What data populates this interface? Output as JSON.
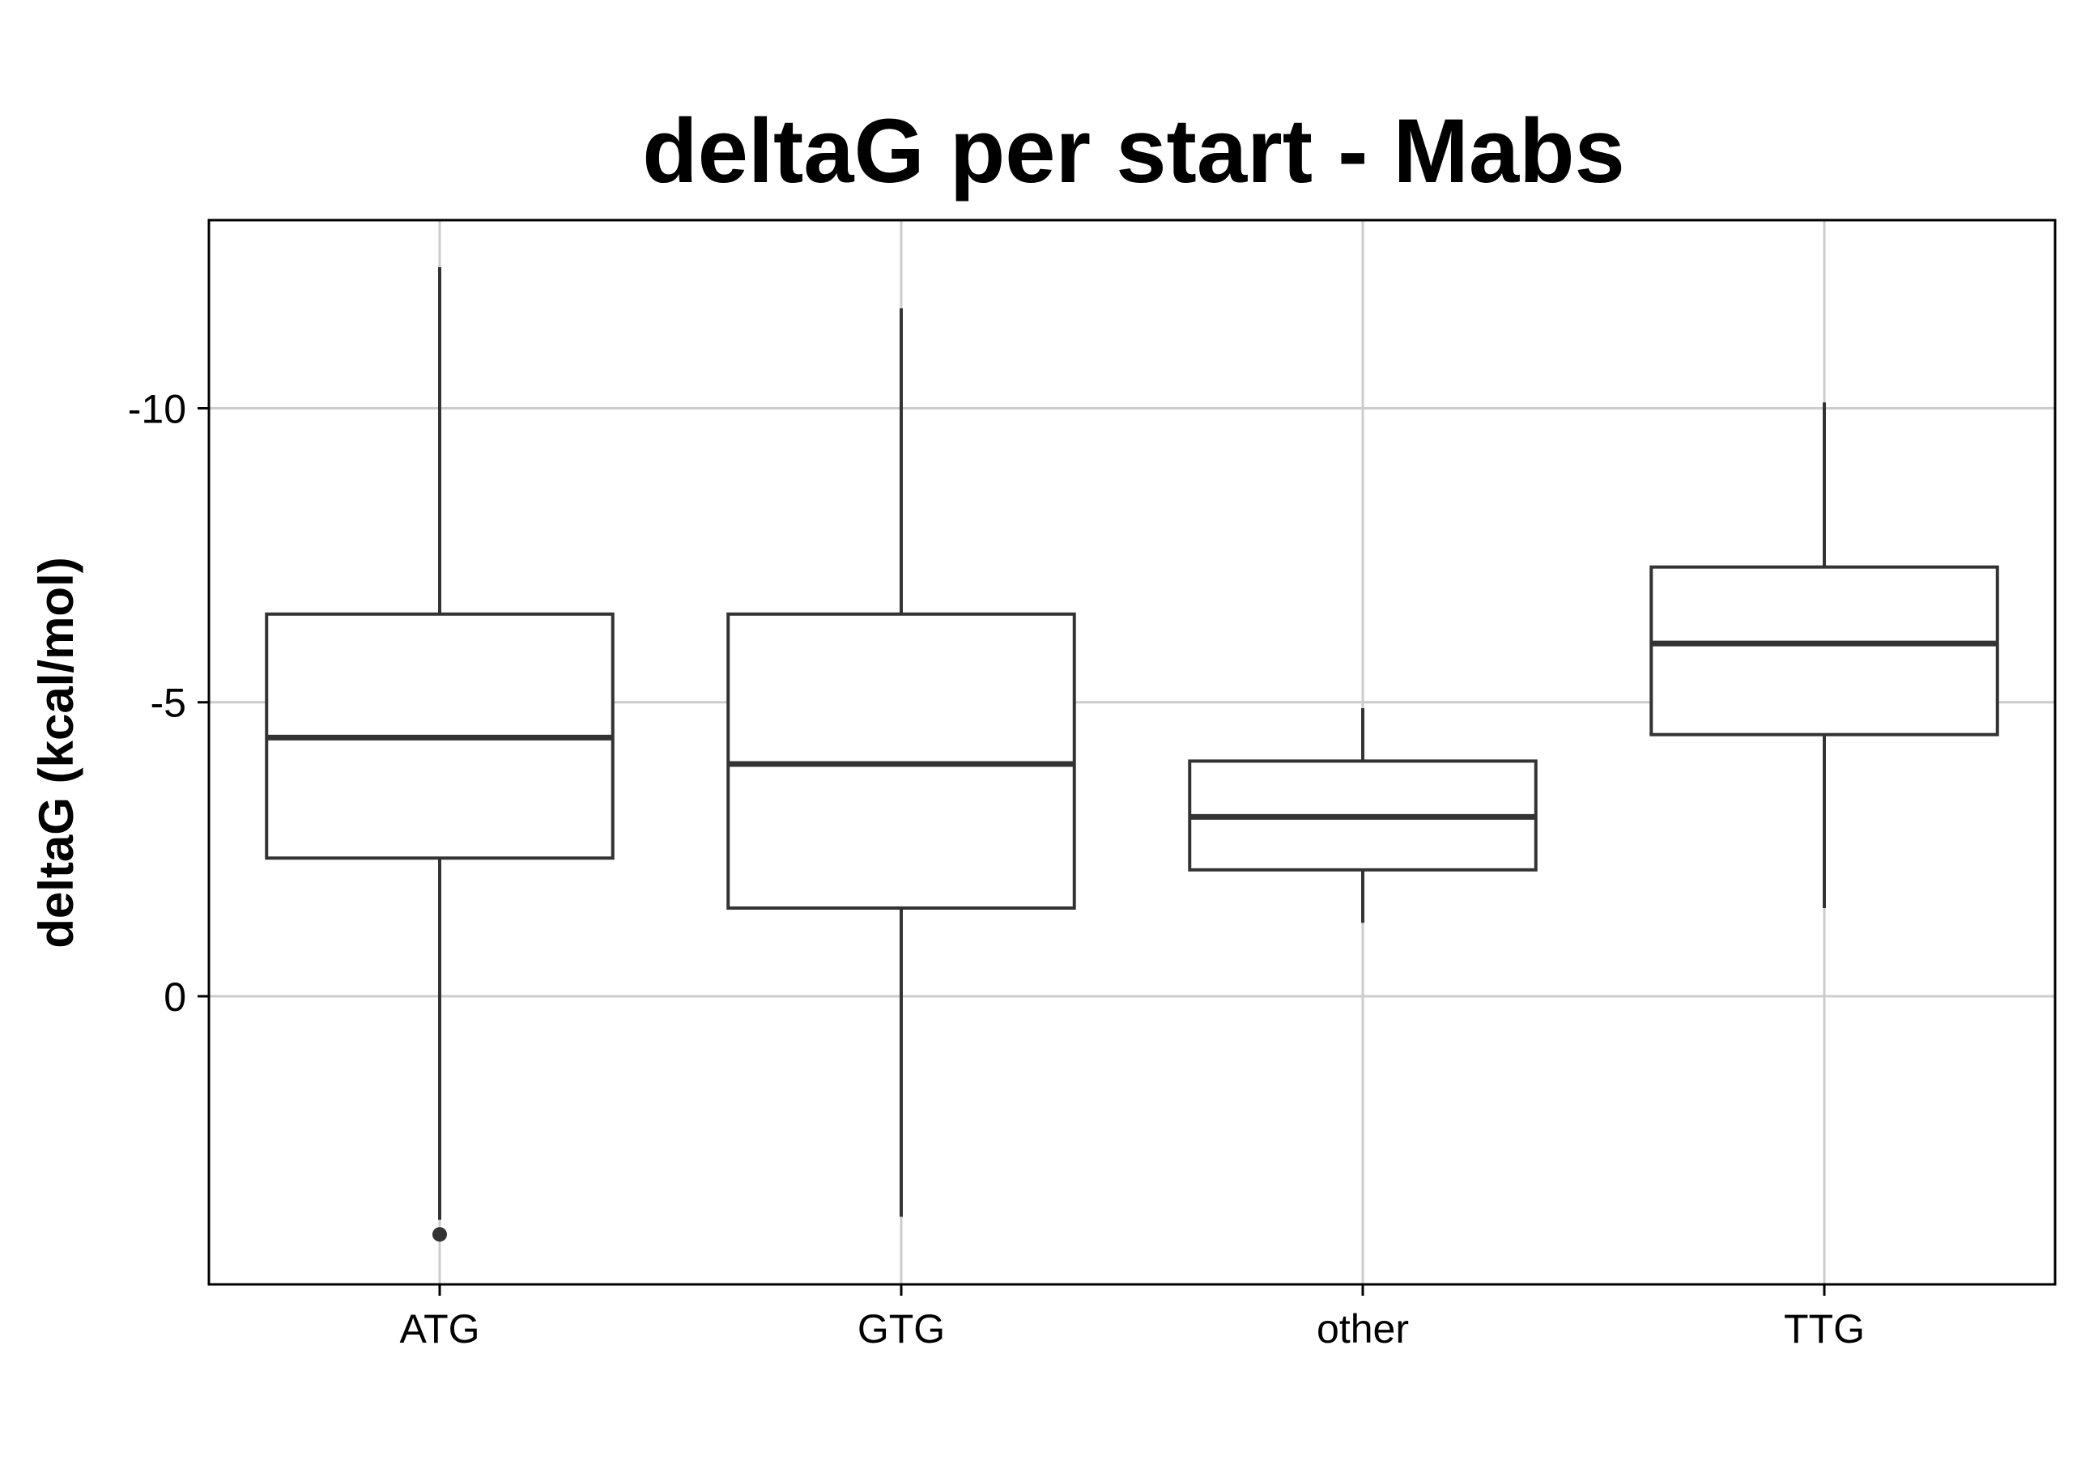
{
  "chart_data": {
    "type": "box",
    "title": "deltaG per start - Mabs",
    "xlabel": "",
    "ylabel": "deltaG (kcal/mol)",
    "y_reversed": true,
    "ylim": [
      4.9,
      -13.2
    ],
    "y_ticks": [
      -10,
      -5,
      0
    ],
    "y_tick_labels": [
      "-10",
      "-5",
      "0"
    ],
    "grid": true,
    "categories": [
      "ATG",
      "GTG",
      "other",
      "TTG"
    ],
    "boxes": [
      {
        "category": "ATG",
        "whisker_low": -12.4,
        "q1": -6.5,
        "median": -4.4,
        "q3": -2.35,
        "whisker_high": 3.8,
        "outliers": [
          4.05
        ]
      },
      {
        "category": "GTG",
        "whisker_low": -11.7,
        "q1": -6.5,
        "median": -3.95,
        "q3": -1.5,
        "whisker_high": 3.75,
        "outliers": []
      },
      {
        "category": "other",
        "whisker_low": -4.9,
        "q1": -4.0,
        "median": -3.05,
        "q3": -2.15,
        "whisker_high": -1.25,
        "outliers": []
      },
      {
        "category": "TTG",
        "whisker_low": -10.1,
        "q1": -7.3,
        "median": -6.0,
        "q3": -4.45,
        "whisker_high": -1.5,
        "outliers": []
      }
    ],
    "colors": {
      "box_line": "#333333",
      "box_fill": "#ffffff",
      "grid": "#cccccc",
      "border": "#000000"
    }
  }
}
